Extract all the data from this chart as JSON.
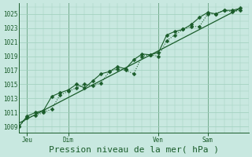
{
  "title": "Pression niveau de la mer( hPa )",
  "bg_color": "#c8e8e0",
  "grid_color": "#9ecfbc",
  "line_color": "#1a5c2a",
  "ylabel_ticks": [
    1009,
    1011,
    1013,
    1015,
    1017,
    1019,
    1021,
    1023,
    1025
  ],
  "ylim": [
    1008.2,
    1026.5
  ],
  "day_labels": [
    "Jeu",
    "Dim",
    "Ven",
    "Sam"
  ],
  "day_positions": [
    0.5,
    3.0,
    8.5,
    11.5
  ],
  "vline_positions": [
    0.5,
    3.0,
    8.5,
    11.5
  ],
  "xlim": [
    0,
    14.0
  ],
  "series1_x": [
    0.0,
    0.5,
    1.0,
    1.5,
    2.0,
    2.5,
    3.0,
    3.5,
    4.0,
    4.5,
    5.0,
    5.5,
    6.0,
    6.5,
    7.0,
    7.5,
    8.0,
    8.5,
    9.0,
    9.5,
    10.0,
    10.5,
    11.0,
    11.5,
    12.0,
    12.5,
    13.0,
    13.5
  ],
  "series1_y": [
    1009.0,
    1010.3,
    1010.6,
    1011.0,
    1011.5,
    1013.5,
    1014.0,
    1014.5,
    1015.0,
    1014.8,
    1015.2,
    1016.8,
    1017.2,
    1017.0,
    1016.5,
    1019.0,
    1019.2,
    1019.0,
    1021.2,
    1022.0,
    1022.8,
    1023.2,
    1023.2,
    1025.0,
    1025.0,
    1025.5,
    1025.3,
    1025.5
  ],
  "series2_x": [
    0.0,
    0.5,
    1.0,
    1.5,
    2.0,
    2.5,
    3.0,
    3.5,
    4.0,
    4.5,
    5.0,
    5.5,
    6.0,
    6.5,
    7.0,
    7.5,
    8.0,
    8.5,
    9.0,
    9.5,
    10.0,
    10.5,
    11.0,
    11.5,
    12.0,
    12.5,
    13.0,
    13.5
  ],
  "series2_y": [
    1009.0,
    1010.5,
    1011.0,
    1011.3,
    1013.3,
    1013.8,
    1014.2,
    1015.0,
    1014.5,
    1015.5,
    1016.5,
    1016.8,
    1017.5,
    1017.2,
    1018.5,
    1019.3,
    1019.2,
    1019.5,
    1022.0,
    1022.5,
    1022.8,
    1023.5,
    1024.5,
    1025.2,
    1025.0,
    1025.5,
    1025.5,
    1025.8
  ],
  "straight_line_x": [
    0.0,
    13.5
  ],
  "straight_line_y": [
    1009.5,
    1025.8
  ],
  "marker_size": 2.5,
  "marker": "D",
  "tick_fontsize": 5.5,
  "xlabel_fontsize": 8.0
}
